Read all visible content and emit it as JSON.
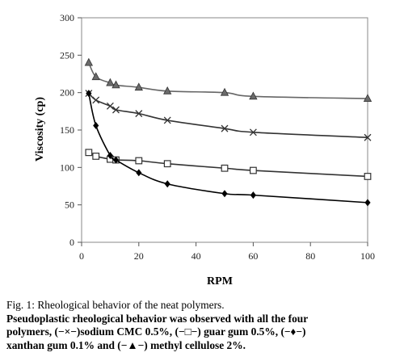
{
  "chart_data": {
    "type": "line",
    "xlabel": "RPM",
    "ylabel": "Viscosity (cp)",
    "xlim": [
      0,
      100
    ],
    "ylim": [
      0,
      300
    ],
    "x_ticks": [
      "0",
      "20",
      "40",
      "60",
      "80",
      "100"
    ],
    "y_ticks": [
      "0",
      "50",
      "100",
      "150",
      "200",
      "250",
      "300"
    ],
    "grid": false,
    "series": [
      {
        "marker": "triangle",
        "color": "#666666",
        "x": [
          2.5,
          5,
          10,
          12,
          20,
          30,
          50,
          60,
          100
        ],
        "y": [
          240,
          221,
          213,
          210,
          207,
          202,
          200,
          195,
          192
        ]
      },
      {
        "marker": "x",
        "color": "#333333",
        "x": [
          2.5,
          5,
          10,
          12,
          20,
          30,
          50,
          60,
          100
        ],
        "y": [
          199,
          190,
          182,
          177,
          172,
          163,
          152,
          147,
          140
        ]
      },
      {
        "marker": "square",
        "color": "#333333",
        "x": [
          2.5,
          5,
          10,
          12,
          20,
          30,
          50,
          60,
          100
        ],
        "y": [
          120,
          115,
          111,
          110,
          109,
          105,
          99,
          96,
          88
        ]
      },
      {
        "marker": "diamond",
        "color": "#000000",
        "x": [
          2.5,
          5,
          10,
          12,
          20,
          30,
          50,
          60,
          100
        ],
        "y": [
          199,
          156,
          116,
          110,
          93,
          78,
          65,
          63,
          53
        ]
      }
    ]
  },
  "caption": {
    "title": "Fig. 1: Rheological behavior of the neat polymers.",
    "line1": "Pseudoplastic rheological behavior was observed with all the four",
    "line2": "polymers, (−×−)sodium CMC 0.5%, (−□−) guar gum 0.5%, (−♦−)",
    "line3": "xanthan gum 0.1% and (−▲−) methyl cellulose 2%."
  }
}
